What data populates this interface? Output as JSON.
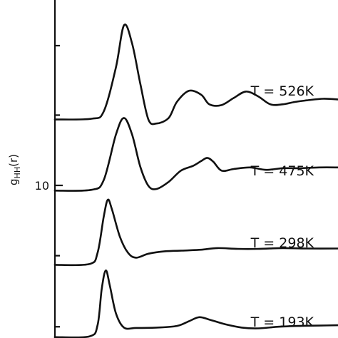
{
  "chart_data": {
    "type": "line",
    "title": "",
    "xlabel": "",
    "ylabel": "gHH(r)",
    "ylabel_main": "g",
    "ylabel_sub": "HH",
    "ylabel_arg": "(r)",
    "y_tick_labels": [
      "10"
    ],
    "grid": false,
    "series": [
      {
        "name": "T = 526K",
        "offset": 18.25,
        "points": [
          [
            0,
            0
          ],
          [
            0.9,
            0.1
          ],
          [
            1.2,
            1.0
          ],
          [
            1.5,
            6.5
          ],
          [
            1.7,
            11.8
          ],
          [
            1.9,
            9.5
          ],
          [
            2.1,
            4.5
          ],
          [
            2.3,
            0
          ],
          [
            2.5,
            -0.5
          ],
          [
            2.8,
            0.2
          ],
          [
            3.0,
            2.2
          ],
          [
            3.3,
            3.6
          ],
          [
            3.6,
            3.1
          ],
          [
            3.8,
            1.9
          ],
          [
            4.1,
            1.8
          ],
          [
            4.4,
            2.7
          ],
          [
            4.7,
            3.5
          ],
          [
            5.0,
            2.9
          ],
          [
            5.3,
            1.9
          ],
          [
            5.6,
            1.9
          ],
          [
            5.9,
            2.2
          ],
          [
            6.2,
            2.4
          ],
          [
            6.6,
            2.6
          ],
          [
            7.0,
            2.5
          ]
        ]
      },
      {
        "name": "T = 475K",
        "offset": 9.35,
        "points": [
          [
            0,
            0
          ],
          [
            0.9,
            0.1
          ],
          [
            1.2,
            1.3
          ],
          [
            1.5,
            7.0
          ],
          [
            1.7,
            9.1
          ],
          [
            1.9,
            7.0
          ],
          [
            2.1,
            3.0
          ],
          [
            2.3,
            0.6
          ],
          [
            2.5,
            0.2
          ],
          [
            2.8,
            1.1
          ],
          [
            3.1,
            2.5
          ],
          [
            3.4,
            3.1
          ],
          [
            3.6,
            3.7
          ],
          [
            3.75,
            4.1
          ],
          [
            3.9,
            3.6
          ],
          [
            4.1,
            2.5
          ],
          [
            4.4,
            2.7
          ],
          [
            4.8,
            2.9
          ],
          [
            5.2,
            2.6
          ],
          [
            5.6,
            2.8
          ],
          [
            6.0,
            2.8
          ],
          [
            6.5,
            2.9
          ],
          [
            7.0,
            2.9
          ]
        ]
      },
      {
        "name": "T = 298K",
        "offset": 0.05,
        "points": [
          [
            0,
            0
          ],
          [
            0.85,
            0.1
          ],
          [
            1.05,
            1.5
          ],
          [
            1.2,
            6.0
          ],
          [
            1.3,
            8.15
          ],
          [
            1.4,
            7.0
          ],
          [
            1.6,
            3.5
          ],
          [
            1.8,
            1.5
          ],
          [
            2.0,
            0.9
          ],
          [
            2.3,
            1.4
          ],
          [
            2.7,
            1.7
          ],
          [
            3.2,
            1.8
          ],
          [
            3.6,
            1.9
          ],
          [
            4.0,
            2.1
          ],
          [
            4.5,
            2.0
          ],
          [
            5.0,
            2.0
          ],
          [
            5.6,
            2.1
          ],
          [
            6.2,
            2.05
          ],
          [
            7.0,
            2.05
          ]
        ]
      },
      {
        "name": "T = 193K",
        "offset": -9.0,
        "points": [
          [
            0,
            0
          ],
          [
            0.85,
            0.1
          ],
          [
            1.05,
            1.5
          ],
          [
            1.15,
            6.0
          ],
          [
            1.25,
            8.35
          ],
          [
            1.35,
            6.5
          ],
          [
            1.5,
            3.0
          ],
          [
            1.7,
            1.2
          ],
          [
            2.0,
            1.15
          ],
          [
            2.5,
            1.2
          ],
          [
            3.0,
            1.4
          ],
          [
            3.3,
            2.0
          ],
          [
            3.55,
            2.5
          ],
          [
            3.8,
            2.2
          ],
          [
            4.2,
            1.6
          ],
          [
            4.6,
            1.2
          ],
          [
            5.0,
            1.1
          ],
          [
            5.5,
            1.3
          ],
          [
            6.0,
            1.4
          ],
          [
            6.5,
            1.45
          ],
          [
            7.0,
            1.5
          ]
        ]
      }
    ]
  }
}
